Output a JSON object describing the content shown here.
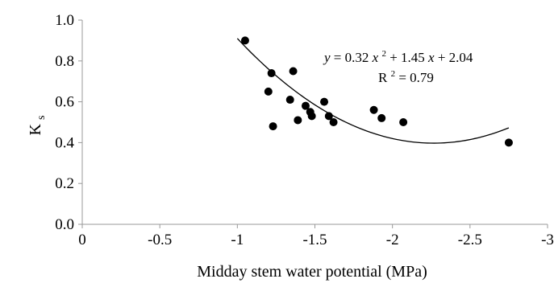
{
  "chart_data": {
    "type": "scatter",
    "xlabel": "Midday stem water potential (MPa)",
    "ylabel_main": "K",
    "ylabel_sub": "s",
    "xlim": [
      0,
      -3
    ],
    "ylim": [
      0,
      1.0
    ],
    "x_ticks": [
      0,
      -0.5,
      -1,
      -1.5,
      -2,
      -2.5,
      -3
    ],
    "x_tick_labels": [
      "0",
      "-0.5",
      "-1",
      "-1.5",
      "-2",
      "-2.5",
      "-3"
    ],
    "y_ticks": [
      0,
      0.2,
      0.4,
      0.6,
      0.8,
      1.0
    ],
    "y_tick_labels": [
      "0.0",
      "0.2",
      "0.4",
      "0.6",
      "0.8",
      "1.0"
    ],
    "grid": false,
    "points": [
      {
        "x": -1.05,
        "y": 0.9
      },
      {
        "x": -1.2,
        "y": 0.65
      },
      {
        "x": -1.22,
        "y": 0.74
      },
      {
        "x": -1.23,
        "y": 0.48
      },
      {
        "x": -1.34,
        "y": 0.61
      },
      {
        "x": -1.36,
        "y": 0.75
      },
      {
        "x": -1.39,
        "y": 0.51
      },
      {
        "x": -1.44,
        "y": 0.58
      },
      {
        "x": -1.47,
        "y": 0.55
      },
      {
        "x": -1.48,
        "y": 0.53
      },
      {
        "x": -1.56,
        "y": 0.6
      },
      {
        "x": -1.59,
        "y": 0.53
      },
      {
        "x": -1.62,
        "y": 0.5
      },
      {
        "x": -1.88,
        "y": 0.56
      },
      {
        "x": -1.93,
        "y": 0.52
      },
      {
        "x": -2.07,
        "y": 0.5
      },
      {
        "x": -2.75,
        "y": 0.4
      }
    ],
    "fit": {
      "a": 0.32,
      "b": 1.45,
      "c": 2.04,
      "x_range": [
        -1.0,
        -2.75
      ],
      "equation": {
        "y": "y",
        "eq_part1": " = 0.32",
        "x1": "x",
        "sup2": "2",
        "eq_part2": " + 1.45",
        "x2": "x",
        "eq_part3": " + 2.04"
      },
      "r2": {
        "label": "R",
        "sup": "2",
        "value": " = 0.79"
      }
    }
  }
}
